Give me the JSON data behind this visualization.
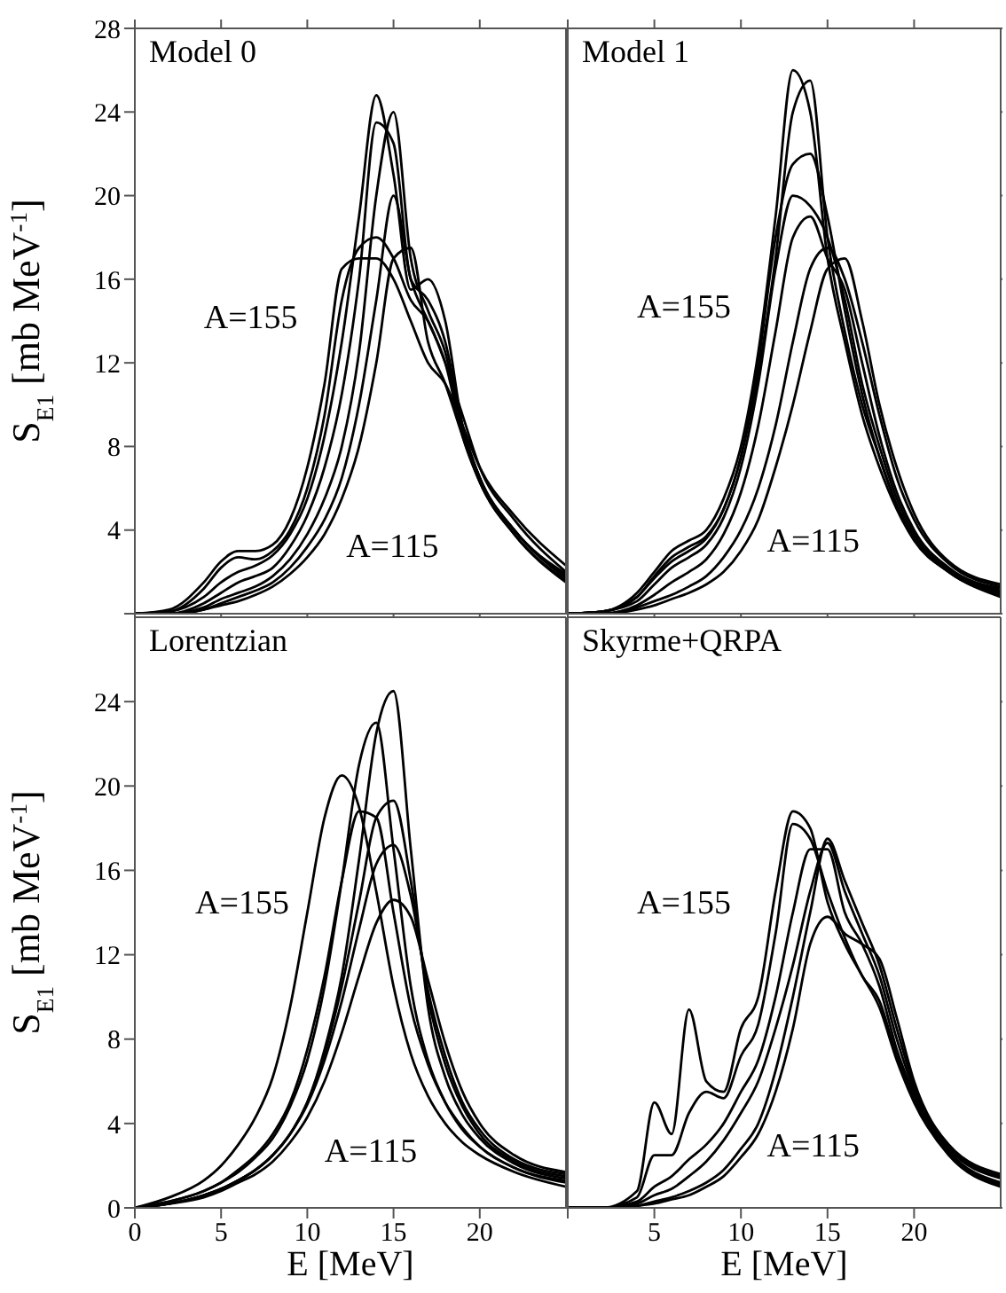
{
  "chart_data": [
    {
      "type": "line",
      "title": "Model 0",
      "ylabel": "S$_{E1}$ [mb MeV$^{-1}$]",
      "marker": "none",
      "tick_labels": "y",
      "xlim": [
        0,
        25
      ],
      "xticks": [
        0,
        5,
        10,
        15,
        20
      ],
      "ylim": [
        0,
        28
      ],
      "yticks": [
        {
          "value": 0,
          "label": null
        },
        4,
        8,
        12,
        16,
        20,
        24,
        28
      ],
      "x": [
        0,
        2,
        4,
        5,
        6,
        7,
        8,
        9,
        10,
        11,
        12,
        13,
        14,
        15,
        16,
        17,
        18,
        19,
        20,
        22,
        25
      ],
      "annotations": [
        "A=155",
        "A=115"
      ],
      "series": [
        {
          "color": "#000000",
          "values": [
            0,
            0.2,
            1.5,
            2.5,
            3,
            3,
            3.3,
            4.5,
            7,
            11,
            16.5,
            17,
            17,
            16,
            14,
            12,
            11,
            9,
            7,
            4.7,
            2.3
          ]
        },
        {
          "color": "#000000",
          "values": [
            0,
            0.1,
            1.2,
            2.2,
            2.7,
            2.6,
            3,
            4,
            6,
            9.5,
            15,
            17.5,
            18,
            17,
            15,
            14,
            12,
            9.5,
            7,
            4.5,
            2
          ]
        },
        {
          "color": "#000000",
          "values": [
            0,
            0.1,
            0.8,
            1.5,
            2,
            2.3,
            2.8,
            3.8,
            5.5,
            8.5,
            13,
            19,
            24.8,
            21,
            15.5,
            16,
            14,
            9,
            6.5,
            4,
            1.9
          ]
        },
        {
          "color": "#000000",
          "values": [
            0,
            0,
            0.5,
            1,
            1.5,
            1.8,
            2.2,
            3.2,
            4.7,
            7,
            10.5,
            16,
            23.5,
            22.5,
            16,
            15,
            13,
            9,
            6.5,
            4,
            1.8
          ]
        },
        {
          "color": "#000000",
          "values": [
            0,
            0,
            0.3,
            0.7,
            1,
            1.3,
            1.8,
            2.6,
            3.8,
            5.5,
            8,
            12.5,
            20,
            24,
            17,
            14.5,
            12.5,
            8.8,
            6.5,
            4,
            1.7
          ]
        },
        {
          "color": "#000000",
          "values": [
            0,
            0,
            0.2,
            0.5,
            0.8,
            1.1,
            1.5,
            2.2,
            3.2,
            4.5,
            6.5,
            10,
            15,
            20,
            16,
            14,
            12,
            8.5,
            6.3,
            3.8,
            1.6
          ]
        },
        {
          "color": "#000000",
          "values": [
            0,
            0,
            0.2,
            0.4,
            0.6,
            0.9,
            1.3,
            1.9,
            2.7,
            3.8,
            5.5,
            8,
            12,
            17,
            17.5,
            13,
            11,
            8.5,
            6.3,
            3.8,
            1.5
          ]
        }
      ]
    },
    {
      "type": "line",
      "title": "Model 1",
      "marker": "none",
      "tick_labels": false,
      "xlim": [
        0,
        25
      ],
      "xticks": [
        0,
        5,
        10,
        15,
        20
      ],
      "ylim": [
        0,
        28
      ],
      "yticks": [
        0,
        4,
        8,
        12,
        16,
        20,
        24,
        28
      ],
      "x": [
        0,
        2,
        4,
        5,
        6,
        7,
        8,
        9,
        10,
        11,
        12,
        13,
        14,
        15,
        16,
        17,
        18,
        19,
        20,
        22,
        25
      ],
      "annotations": [
        "A=155",
        "A=115"
      ],
      "series": [
        {
          "color": "#000000",
          "values": [
            0,
            0.1,
            1,
            2,
            3,
            3.5,
            4,
            5.5,
            8,
            12.5,
            19,
            26,
            24,
            17,
            13,
            9.5,
            7,
            5,
            3.5,
            2,
            0.8
          ]
        },
        {
          "color": "#000000",
          "values": [
            0,
            0.1,
            0.8,
            1.8,
            2.7,
            3.2,
            3.7,
            5,
            7.5,
            11.5,
            17,
            24,
            25.5,
            18,
            13.5,
            10,
            7.5,
            5.2,
            3.6,
            2,
            0.9
          ]
        },
        {
          "color": "#000000",
          "values": [
            0,
            0.1,
            0.8,
            1.7,
            2.5,
            3,
            3.6,
            5,
            7.5,
            12,
            18,
            21.5,
            22,
            19,
            14.5,
            10.5,
            7.5,
            5.2,
            3.6,
            2,
            1
          ]
        },
        {
          "color": "#000000",
          "values": [
            0,
            0.1,
            0.6,
            1.4,
            2.2,
            2.7,
            3.3,
            4.6,
            7,
            11,
            16.5,
            20,
            19.5,
            18,
            15,
            11,
            8,
            5.5,
            3.8,
            2.1,
            1.1
          ]
        },
        {
          "color": "#000000",
          "values": [
            0,
            0,
            0.4,
            0.9,
            1.5,
            2,
            2.6,
            3.8,
            5.8,
            9,
            13.5,
            18,
            19,
            17,
            15.5,
            12,
            8.5,
            5.8,
            4,
            2.2,
            1.2
          ]
        },
        {
          "color": "#000000",
          "values": [
            0,
            0,
            0.3,
            0.6,
            0.9,
            1.3,
            1.8,
            2.7,
            4,
            6,
            9,
            13,
            16.5,
            17.5,
            16,
            13,
            9.5,
            6.5,
            4.5,
            2.4,
            1.3
          ]
        },
        {
          "color": "#000000",
          "values": [
            0,
            0,
            0.2,
            0.4,
            0.7,
            1,
            1.4,
            2,
            3,
            4.5,
            7,
            10,
            13.5,
            16.5,
            17,
            14,
            10,
            7,
            4.8,
            2.5,
            1.4
          ]
        }
      ]
    },
    {
      "type": "line",
      "title": "Lorentzian",
      "xlabel": "E [MeV]",
      "ylabel": "S$_{E1}$ [mb MeV$^{-1}$]",
      "marker": "none",
      "xlim": [
        0,
        25
      ],
      "xticks": [
        0,
        5,
        10,
        15,
        20
      ],
      "ylim": [
        0,
        28
      ],
      "yticks": [
        0,
        4,
        8,
        12,
        16,
        20,
        24
      ],
      "x": [
        0,
        2,
        4,
        5,
        6,
        7,
        8,
        9,
        10,
        11,
        12,
        13,
        14,
        15,
        16,
        17,
        18,
        19,
        20,
        22,
        25
      ],
      "annotations": [
        "A=155",
        "A=115"
      ],
      "series": [
        {
          "color": "#000000",
          "values": [
            0,
            0.5,
            1.3,
            2,
            3,
            4.3,
            6.2,
            9.5,
            14,
            18.5,
            20.5,
            19,
            15,
            10.5,
            7.3,
            5.3,
            4,
            3.1,
            2.5,
            1.7,
            1
          ]
        },
        {
          "color": "#000000",
          "values": [
            0,
            0.3,
            0.8,
            1.2,
            1.8,
            2.5,
            3.5,
            5,
            7.5,
            11,
            15.5,
            18.8,
            18.5,
            14,
            9.5,
            6.8,
            5,
            3.8,
            2.9,
            1.9,
            1.2
          ]
        },
        {
          "color": "#000000",
          "values": [
            0,
            0.3,
            0.8,
            1.2,
            1.7,
            2.4,
            3.3,
            4.8,
            7,
            10.5,
            15.5,
            21,
            23,
            17,
            10.5,
            7,
            5,
            3.7,
            2.9,
            1.9,
            1.3
          ]
        },
        {
          "color": "#000000",
          "values": [
            0,
            0.2,
            0.6,
            0.9,
            1.3,
            1.8,
            2.5,
            3.5,
            5,
            7.5,
            11,
            16.5,
            22.5,
            24.5,
            17,
            9.5,
            6.2,
            4.4,
            3.3,
            2.1,
            1.4
          ]
        },
        {
          "color": "#000000",
          "values": [
            0,
            0.2,
            0.6,
            0.9,
            1.3,
            1.8,
            2.5,
            3.5,
            5,
            7.3,
            10.5,
            14.5,
            18.5,
            19.3,
            15.5,
            10,
            6.8,
            4.8,
            3.5,
            2.2,
            1.5
          ]
        },
        {
          "color": "#000000",
          "values": [
            0,
            0.2,
            0.6,
            0.9,
            1.3,
            1.8,
            2.5,
            3.5,
            4.9,
            7,
            9.8,
            13.2,
            16.3,
            17.2,
            14.8,
            10.3,
            7.2,
            5,
            3.7,
            2.3,
            1.6
          ]
        },
        {
          "color": "#000000",
          "values": [
            0,
            0.2,
            0.5,
            0.8,
            1.2,
            1.6,
            2.2,
            3.1,
            4.3,
            6,
            8.3,
            11,
            13.5,
            14.6,
            13.8,
            10.8,
            7.8,
            5.5,
            4,
            2.5,
            1.7
          ]
        }
      ]
    },
    {
      "type": "line",
      "title": "Skyrme+QRPA",
      "xlabel": "E [MeV]",
      "marker": "none",
      "tick_labels": "x",
      "xlim": [
        0,
        25
      ],
      "xticks": [
        {
          "value": 0,
          "label": null
        },
        5,
        10,
        15,
        20
      ],
      "ylim": [
        0,
        28
      ],
      "yticks": [
        0,
        4,
        8,
        12,
        16,
        20,
        24
      ],
      "x": [
        0,
        2,
        4,
        5,
        6,
        7,
        8,
        9,
        10,
        11,
        12,
        13,
        14,
        15,
        16,
        17,
        18,
        19,
        20,
        22,
        25
      ],
      "annotations": [
        "A=155",
        "A=115"
      ],
      "series": [
        {
          "color": "#000000",
          "values": [
            0,
            0,
            0.8,
            5,
            3.5,
            9.4,
            6,
            5.5,
            8.5,
            10,
            15,
            18.8,
            18,
            14.5,
            12.5,
            11,
            9.5,
            7,
            5,
            2.5,
            1
          ]
        },
        {
          "color": "#000000",
          "values": [
            0,
            0,
            0.5,
            2.5,
            2.5,
            4.5,
            5.5,
            5.2,
            7.2,
            8.7,
            13,
            18.2,
            17.5,
            15,
            12.8,
            11,
            9.8,
            7.2,
            5.2,
            2.6,
            1.1
          ]
        },
        {
          "color": "#000000",
          "values": [
            0,
            0,
            0.3,
            1,
            1.5,
            2.3,
            3,
            4,
            5.5,
            7,
            10,
            14,
            17,
            17,
            14,
            12.5,
            10.5,
            7.5,
            5.4,
            2.7,
            1.2
          ]
        },
        {
          "color": "#000000",
          "values": [
            0,
            0,
            0.2,
            0.6,
            0.9,
            1.5,
            2.2,
            3.2,
            4.5,
            6,
            8.5,
            11.5,
            15,
            17.3,
            15,
            13,
            11,
            8,
            5.6,
            2.8,
            1.4
          ]
        },
        {
          "color": "#000000",
          "values": [
            0,
            0,
            0.1,
            0.3,
            0.5,
            0.8,
            1.2,
            1.8,
            2.8,
            4,
            6.5,
            10,
            14,
            17.5,
            15.5,
            13.5,
            11.5,
            8.5,
            5.8,
            2.9,
            1.5
          ]
        },
        {
          "color": "#000000",
          "values": [
            0,
            0,
            0.1,
            0.2,
            0.4,
            0.6,
            1,
            1.5,
            2.4,
            3.5,
            5.5,
            8.5,
            12.5,
            13.8,
            13,
            12.5,
            11.8,
            9,
            6,
            3,
            1.6
          ]
        }
      ]
    }
  ]
}
